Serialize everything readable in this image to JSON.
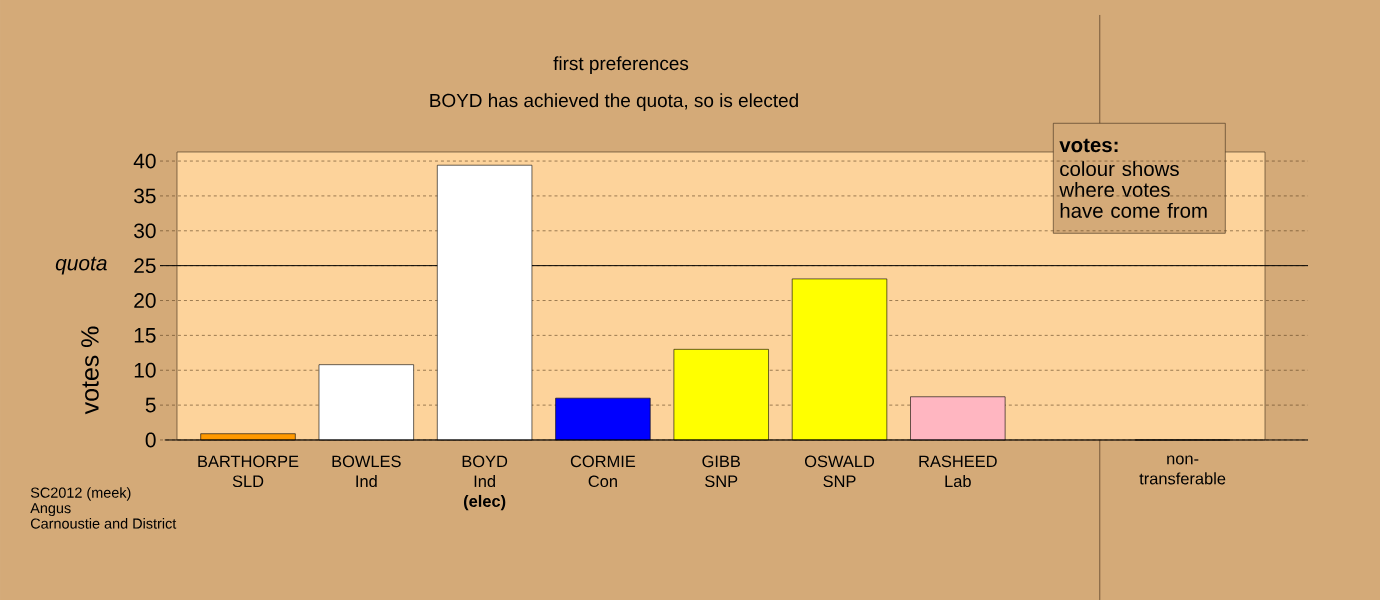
{
  "chart_data": {
    "type": "bar",
    "title": "first preferences",
    "subtitle": "BOYD has achieved the quota, so is elected",
    "ylabel": "votes %",
    "categories": [
      "BARTHORPE SLD",
      "BOWLES Ind",
      "BOYD Ind **(elec)**",
      "CORMIE Con",
      "GIBB SNP",
      "OSWALD SNP",
      "RASHEED Lab",
      "non-transferable"
    ],
    "values": [
      0.9,
      10.8,
      39.4,
      6.0,
      13.0,
      23.1,
      6.2,
      0
    ],
    "colors": [
      "#ff9900",
      "#ffffff",
      "#ffffff",
      "#0000ff",
      "#ffff00",
      "#ffff00",
      "#ffb6c1",
      "#ffffff"
    ],
    "ylim": [
      0,
      41.3
    ],
    "yticks": [
      0,
      5,
      10,
      15,
      20,
      25,
      30,
      35,
      40
    ],
    "grid": "y",
    "ref_lines": [
      {
        "axis": "y",
        "value": 25,
        "label": "quota",
        "color": "#000000"
      }
    ],
    "annotations": [
      "votes:",
      "colour shows where votes have come from",
      "SC2012 (meek)",
      "Angus",
      "Carnoustie and District"
    ]
  }
}
